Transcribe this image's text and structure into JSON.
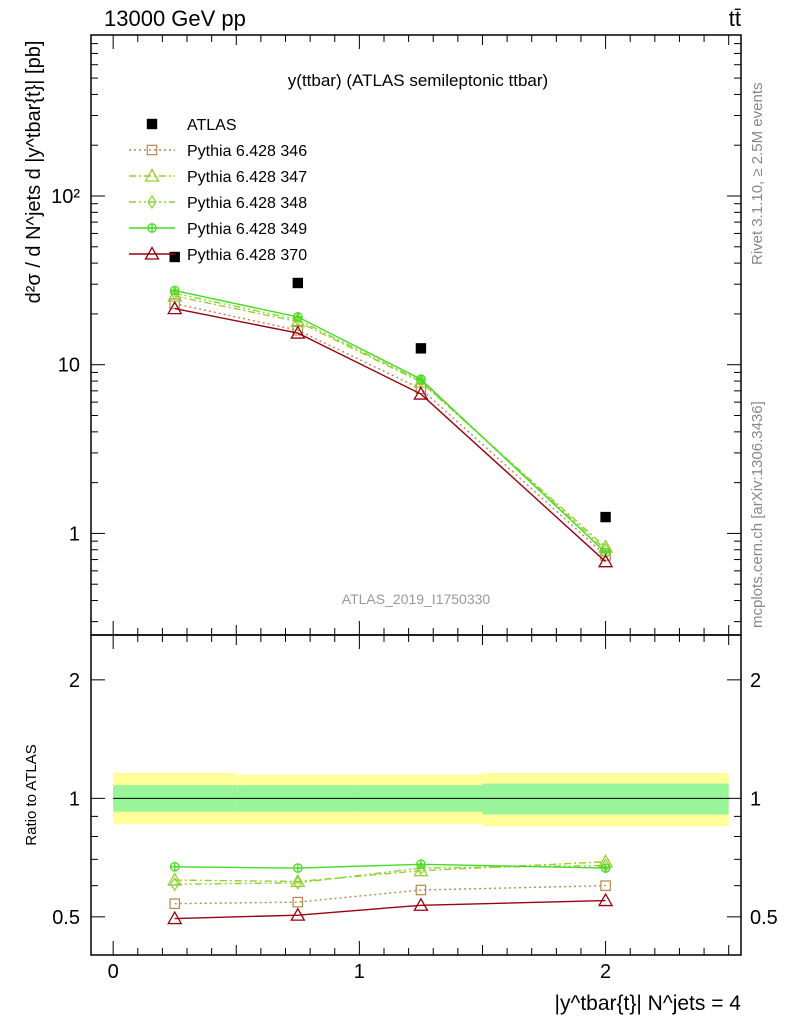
{
  "header": {
    "energy": "13000 GeV pp",
    "process": "tt̄"
  },
  "side_labels": {
    "rivet": "Rivet 3.1.10, ≥ 2.5M events",
    "mcplots": "mcplots.cern.ch [arXiv:1306.3436]"
  },
  "chart_data": [
    {
      "type": "scatter",
      "panel": "main",
      "title": "y(ttbar) (ATLAS semileptonic ttbar)",
      "ylabel": "d²σ / d N^jets d |y^tbar{t}| [pb]",
      "watermark": "ATLAS_2019_I1750330",
      "x_scale": "linear",
      "y_scale": "log",
      "xlim": [
        -0.09,
        2.55
      ],
      "ylim": [
        0.25,
        900
      ],
      "y_ticks": [
        {
          "v": 1,
          "label": "1"
        },
        {
          "v": 10,
          "label": "10"
        },
        {
          "v": 100,
          "label": "10²"
        }
      ],
      "legend_position": "top-left",
      "x": [
        0.25,
        0.75,
        1.25,
        2.0
      ],
      "series": [
        {
          "name": "ATLAS",
          "color": "#000000",
          "marker": "filled-square",
          "line": "none",
          "values": [
            43.5,
            30.5,
            12.5,
            1.25
          ]
        },
        {
          "name": "Pythia 6.428 346",
          "color": "#b8874e",
          "marker": "open-square",
          "line": "dotted",
          "values": [
            23.0,
            16.0,
            7.2,
            0.74
          ]
        },
        {
          "name": "Pythia 6.428 347",
          "color": "#9acd32",
          "marker": "open-triangle",
          "line": "dash-dot",
          "values": [
            25.5,
            18.0,
            7.9,
            0.83
          ]
        },
        {
          "name": "Pythia 6.428 348",
          "color": "#8ad435",
          "marker": "open-diamond",
          "line": "dash-dot-dot",
          "values": [
            26.5,
            18.5,
            8.0,
            0.8
          ]
        },
        {
          "name": "Pythia 6.428 349",
          "color": "#44dd22",
          "marker": "cross-circle",
          "line": "solid",
          "values": [
            27.5,
            19.2,
            8.2,
            0.77
          ]
        },
        {
          "name": "Pythia 6.428 370",
          "color": "#990011",
          "marker": "open-triangle",
          "line": "solid",
          "values": [
            21.5,
            15.4,
            6.7,
            0.68
          ]
        }
      ]
    },
    {
      "type": "scatter",
      "panel": "ratio",
      "ylabel": "Ratio to ATLAS",
      "xlabel": "|y^tbar{t}| N^jets = 4",
      "x_scale": "linear",
      "y_scale": "log",
      "xlim": [
        -0.09,
        2.55
      ],
      "ylim": [
        0.4,
        2.6
      ],
      "y_ticks": [
        {
          "v": 0.5,
          "label": "0.5"
        },
        {
          "v": 1,
          "label": "1"
        },
        {
          "v": 2,
          "label": "2"
        }
      ],
      "x_ticks": [
        {
          "v": 0,
          "label": "0"
        },
        {
          "v": 1,
          "label": "1"
        },
        {
          "v": 2,
          "label": "2"
        }
      ],
      "bands": {
        "bins": [
          [
            0,
            0.5
          ],
          [
            0.5,
            1.0
          ],
          [
            1.0,
            1.5
          ],
          [
            1.5,
            2.5
          ]
        ],
        "inner": [
          [
            0.925,
            1.08
          ],
          [
            0.925,
            1.08
          ],
          [
            0.925,
            1.08
          ],
          [
            0.91,
            1.09
          ]
        ],
        "outer": [
          [
            0.86,
            1.16
          ],
          [
            0.86,
            1.15
          ],
          [
            0.86,
            1.15
          ],
          [
            0.85,
            1.16
          ]
        ]
      },
      "x": [
        0.25,
        0.75,
        1.25,
        2.0
      ],
      "series": [
        {
          "name": "Pythia 6.428 346",
          "values": [
            0.54,
            0.545,
            0.585,
            0.6
          ]
        },
        {
          "name": "Pythia 6.428 347",
          "values": [
            0.62,
            0.615,
            0.655,
            0.69
          ]
        },
        {
          "name": "Pythia 6.428 348",
          "values": [
            0.605,
            0.61,
            0.665,
            0.675
          ]
        },
        {
          "name": "Pythia 6.428 349",
          "values": [
            0.67,
            0.665,
            0.68,
            0.665
          ]
        },
        {
          "name": "Pythia 6.428 370",
          "values": [
            0.495,
            0.505,
            0.535,
            0.55
          ]
        }
      ]
    }
  ]
}
